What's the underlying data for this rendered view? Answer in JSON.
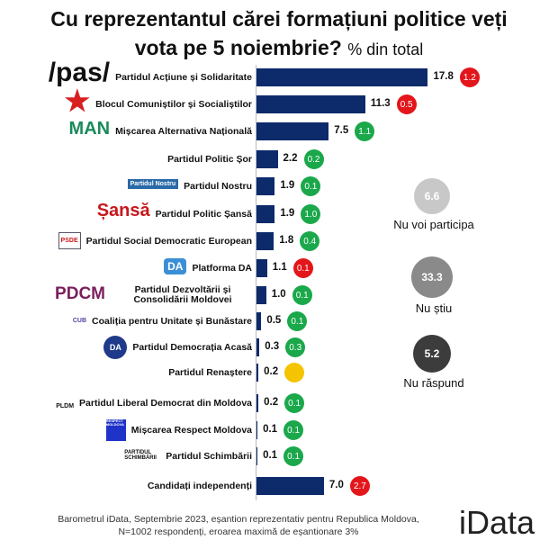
{
  "chart_data": {
    "type": "bar",
    "title_line1": "Cu reprezentantul cărei formațiuni politice veți",
    "title_line2": "vota pe 5 noiembrie?",
    "unit": "% din total",
    "categories": [
      "Partidul Acțiune și Solidaritate",
      "Blocul Comuniștilor și Socialiștilor",
      "Mișcarea Alternativa Națională",
      "Partidul Politic Șor",
      "Partidul Nostru",
      "Partidul Politic Șansă",
      "Partidul Social Democratic European",
      "Platforma DA",
      "Partidul Dezvoltării și Consolidării Moldovei",
      "Coaliția pentru Unitate și Bunăstare",
      "Partidul Democrația Acasă",
      "Partidul Renaștere",
      "Partidul Liberal Democrat din Moldova",
      "Mișcarea Respect Moldova",
      "Partidul Schimbării",
      "Candidați independenți"
    ],
    "values": [
      17.8,
      11.3,
      7.5,
      2.2,
      1.9,
      1.9,
      1.8,
      1.1,
      1.0,
      0.5,
      0.3,
      0.2,
      0.2,
      0.1,
      0.1,
      7.0
    ],
    "changes": [
      {
        "value": "1.2",
        "direction": "down"
      },
      {
        "value": "0.5",
        "direction": "down"
      },
      {
        "value": "1.1",
        "direction": "up"
      },
      {
        "value": "0.2",
        "direction": "up"
      },
      {
        "value": "0.1",
        "direction": "up"
      },
      {
        "value": "1.0",
        "direction": "up"
      },
      {
        "value": "0.4",
        "direction": "up"
      },
      {
        "value": "0.1",
        "direction": "down"
      },
      {
        "value": "0.1",
        "direction": "up"
      },
      {
        "value": "0.1",
        "direction": "up"
      },
      {
        "value": "0.3",
        "direction": "up"
      },
      {
        "value": "",
        "direction": "same"
      },
      {
        "value": "0.1",
        "direction": "up"
      },
      {
        "value": "0.1",
        "direction": "up"
      },
      {
        "value": "0.1",
        "direction": "up"
      },
      {
        "value": "2.7",
        "direction": "down"
      }
    ],
    "logos": [
      "/pas/",
      "★",
      "MAN",
      "",
      "Partidul Nostru",
      "Șansă",
      "PSDE",
      "DA",
      "PDCM",
      "CUB",
      "DA",
      "",
      "PLDM",
      "RESPECT MOLDOVA",
      "PARTIDUL SCHIMBĂRII",
      ""
    ],
    "other": [
      {
        "label": "Nu voi participa",
        "value": 6.6
      },
      {
        "label": "Nu știu",
        "value": 33.3
      },
      {
        "label": "Nu răspund",
        "value": 5.2
      }
    ],
    "colors": {
      "bar": "#0d2a6b",
      "up": "#1aa84b",
      "down": "#e3161b",
      "same": "#f5c400"
    }
  },
  "footer": {
    "line1": "Barometrul iData, Septembrie 2023, eșantion reprezentativ pentru Republica Moldova,",
    "line2": "N=1002 respondenți, eroarea maximă de eșantionare 3%"
  },
  "brand": "iData"
}
